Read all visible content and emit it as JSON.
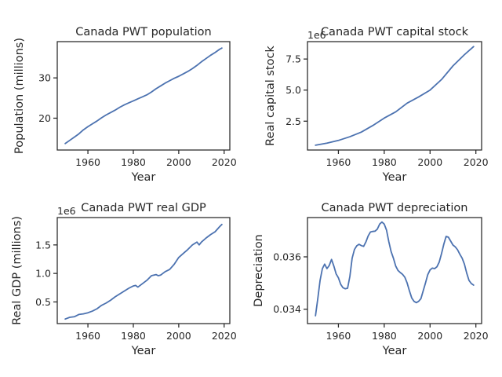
{
  "colors": {
    "line": "#4c72b0",
    "axis": "#262626"
  },
  "chart_data": [
    {
      "id": "population",
      "type": "line",
      "title": "Canada PWT population",
      "xlabel": "Year",
      "ylabel": "Population (millions)",
      "offset_label": "",
      "xlim": [
        1946.5,
        2022.5
      ],
      "ylim": [
        12.1,
        39.0
      ],
      "xticks": [
        1960,
        1980,
        2000,
        2020
      ],
      "yticks": [
        20,
        30
      ],
      "ytick_labels": [
        "20",
        "30"
      ],
      "series": [
        {
          "x": [
            1950,
            1952,
            1954,
            1956,
            1958,
            1960,
            1962,
            1964,
            1966,
            1968,
            1970,
            1972,
            1974,
            1976,
            1978,
            1980,
            1982,
            1984,
            1986,
            1988,
            1990,
            1992,
            1994,
            1996,
            1998,
            2000,
            2002,
            2004,
            2006,
            2008,
            2010,
            2012,
            2014,
            2016,
            2018,
            2019
          ],
          "values": [
            13.7,
            14.5,
            15.3,
            16.1,
            17.1,
            17.9,
            18.6,
            19.3,
            20.1,
            20.8,
            21.4,
            22.0,
            22.7,
            23.3,
            23.8,
            24.3,
            24.8,
            25.3,
            25.8,
            26.5,
            27.3,
            28.0,
            28.7,
            29.3,
            29.9,
            30.4,
            31.0,
            31.6,
            32.3,
            33.1,
            34.0,
            34.8,
            35.6,
            36.3,
            37.1,
            37.4
          ]
        }
      ]
    },
    {
      "id": "capital",
      "type": "line",
      "title": "Canada PWT capital stock",
      "xlabel": "Year",
      "ylabel": "Real capital stock",
      "offset_label": "1e6",
      "xlim": [
        1946.5,
        2022.5
      ],
      "ylim": [
        0.18,
        8.9
      ],
      "xticks": [
        1960,
        1980,
        2000,
        2020
      ],
      "yticks": [
        2.5,
        5.0,
        7.5
      ],
      "ytick_labels": [
        "2.5",
        "5.0",
        "7.5"
      ],
      "series": [
        {
          "x": [
            1950,
            1955,
            1960,
            1965,
            1970,
            1975,
            1980,
            1985,
            1990,
            1995,
            2000,
            2005,
            2010,
            2015,
            2019
          ],
          "values": [
            0.57,
            0.73,
            0.95,
            1.25,
            1.62,
            2.15,
            2.75,
            3.25,
            3.95,
            4.45,
            5.0,
            5.85,
            6.95,
            7.85,
            8.5
          ]
        }
      ]
    },
    {
      "id": "gdp",
      "type": "line",
      "title": "Canada PWT real GDP",
      "xlabel": "Year",
      "ylabel": "Real GDP (millions)",
      "offset_label": "1e6",
      "xlim": [
        1946.5,
        2022.5
      ],
      "ylim": [
        0.12,
        1.98
      ],
      "xticks": [
        1960,
        1980,
        2000,
        2020
      ],
      "yticks": [
        0.5,
        1.0,
        1.5
      ],
      "ytick_labels": [
        "0.5",
        "1.0",
        "1.5"
      ],
      "series": [
        {
          "x": [
            1950,
            1952,
            1954,
            1956,
            1958,
            1960,
            1962,
            1964,
            1966,
            1968,
            1970,
            1972,
            1974,
            1976,
            1978,
            1980,
            1981,
            1982,
            1984,
            1986,
            1988,
            1990,
            1991,
            1992,
            1994,
            1996,
            1998,
            2000,
            2002,
            2004,
            2006,
            2008,
            2009,
            2010,
            2012,
            2014,
            2016,
            2018,
            2019
          ],
          "values": [
            0.2,
            0.23,
            0.24,
            0.28,
            0.29,
            0.31,
            0.34,
            0.38,
            0.44,
            0.48,
            0.53,
            0.59,
            0.64,
            0.69,
            0.74,
            0.78,
            0.79,
            0.76,
            0.82,
            0.88,
            0.96,
            0.98,
            0.96,
            0.97,
            1.03,
            1.07,
            1.16,
            1.28,
            1.35,
            1.42,
            1.5,
            1.55,
            1.5,
            1.55,
            1.62,
            1.68,
            1.73,
            1.82,
            1.86
          ]
        }
      ]
    },
    {
      "id": "depreciation",
      "type": "line",
      "title": "Canada PWT depreciation",
      "xlabel": "Year",
      "ylabel": "Depreciation",
      "offset_label": "",
      "xlim": [
        1946.5,
        2022.5
      ],
      "ylim": [
        0.03345,
        0.0375
      ],
      "xticks": [
        1960,
        1980,
        2000,
        2020
      ],
      "yticks": [
        0.034,
        0.036
      ],
      "ytick_labels": [
        "0.034",
        "0.036"
      ],
      "series": [
        {
          "x": [
            1950,
            1951,
            1952,
            1953,
            1954,
            1955,
            1956,
            1957,
            1958,
            1959,
            1960,
            1961,
            1962,
            1963,
            1964,
            1965,
            1966,
            1967,
            1968,
            1969,
            1970,
            1971,
            1972,
            1973,
            1974,
            1975,
            1976,
            1977,
            1978,
            1979,
            1980,
            1981,
            1982,
            1983,
            1984,
            1985,
            1986,
            1987,
            1988,
            1989,
            1990,
            1991,
            1992,
            1993,
            1994,
            1995,
            1996,
            1997,
            1998,
            1999,
            2000,
            2001,
            2002,
            2003,
            2004,
            2005,
            2006,
            2007,
            2008,
            2009,
            2010,
            2011,
            2012,
            2013,
            2014,
            2015,
            2016,
            2017,
            2018,
            2019
          ],
          "values": [
            0.03375,
            0.0344,
            0.0351,
            0.03555,
            0.03572,
            0.03555,
            0.03567,
            0.0359,
            0.03565,
            0.03535,
            0.0352,
            0.03495,
            0.03482,
            0.03478,
            0.0348,
            0.03525,
            0.03595,
            0.03628,
            0.03642,
            0.03648,
            0.03643,
            0.0364,
            0.03657,
            0.0368,
            0.03695,
            0.03697,
            0.03698,
            0.03706,
            0.03725,
            0.03733,
            0.03725,
            0.03702,
            0.03658,
            0.0362,
            0.03595,
            0.03565,
            0.03548,
            0.0354,
            0.03533,
            0.03522,
            0.035,
            0.0347,
            0.03443,
            0.0343,
            0.03425,
            0.0343,
            0.0344,
            0.0347,
            0.035,
            0.03532,
            0.0355,
            0.03557,
            0.03555,
            0.03562,
            0.0358,
            0.03612,
            0.03648,
            0.03678,
            0.03675,
            0.0366,
            0.03645,
            0.03638,
            0.03627,
            0.0361,
            0.03595,
            0.03572,
            0.03538,
            0.0351,
            0.03498,
            0.03492
          ]
        }
      ]
    }
  ]
}
